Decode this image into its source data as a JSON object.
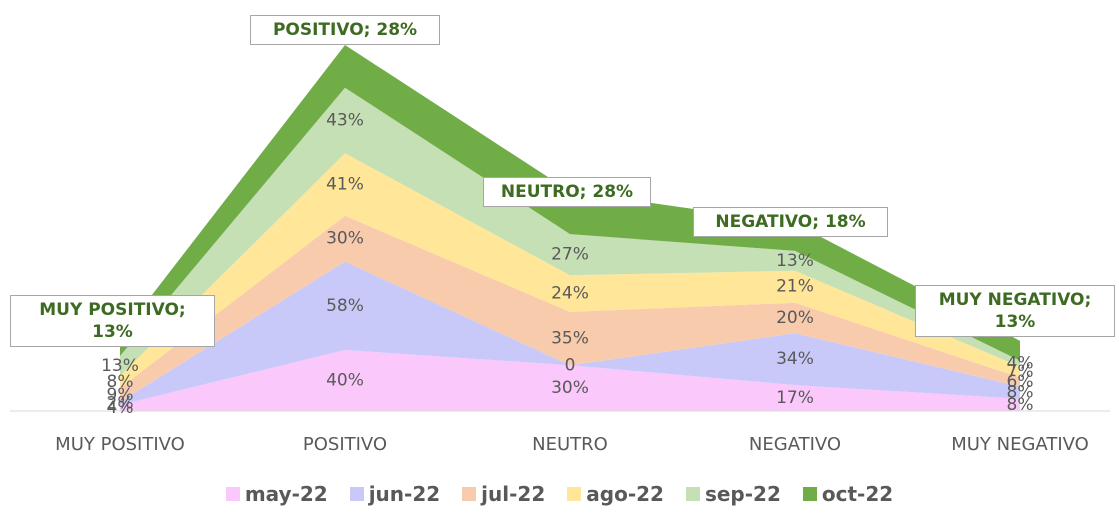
{
  "chart_data": {
    "type": "stacked_area",
    "categories": [
      "MUY POSITIVO",
      "POSITIVO",
      "NEUTRO",
      "NEGATIVO",
      "MUY NEGATIVO"
    ],
    "series": [
      {
        "name": "may-22",
        "color": "#fbc8fb",
        "values": [
          4,
          40,
          30,
          17,
          8
        ],
        "value_labels": [
          "4%",
          "40%",
          "30%",
          "17%",
          "8%"
        ]
      },
      {
        "name": "jun-22",
        "color": "#c9c9f9",
        "values": [
          2,
          58,
          0,
          34,
          8
        ],
        "value_labels": [
          "2%",
          "58%",
          "0",
          "34%",
          "8%"
        ]
      },
      {
        "name": "jul-22",
        "color": "#f8cbad",
        "values": [
          9,
          30,
          35,
          20,
          6
        ],
        "value_labels": [
          "9%",
          "30%",
          "35%",
          "20%",
          "6%"
        ]
      },
      {
        "name": "ago-22",
        "color": "#ffe699",
        "values": [
          8,
          41,
          24,
          21,
          7
        ],
        "value_labels": [
          "8%",
          "41%",
          "24%",
          "21%",
          "7%"
        ]
      },
      {
        "name": "sep-22",
        "color": "#c5e0b4",
        "values": [
          13,
          43,
          27,
          13,
          4
        ],
        "value_labels": [
          "13%",
          "43%",
          "27%",
          "13%",
          "4%"
        ]
      },
      {
        "name": "oct-22",
        "color": "#70ad47",
        "values": [
          13,
          28,
          28,
          18,
          13
        ],
        "value_labels": [
          "MUY POSITIVO; 13%",
          "POSITIVO; 28%",
          "NEUTRO; 28%",
          "NEGATIVO; 18%",
          "MUY NEGATIVO; 13%"
        ]
      }
    ]
  }
}
